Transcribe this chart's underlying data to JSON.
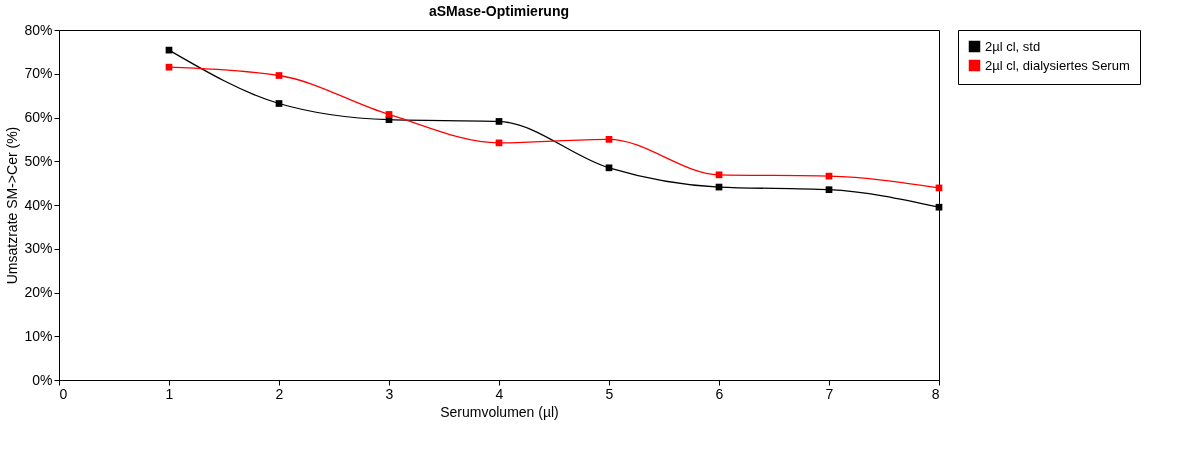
{
  "chart_data": {
    "type": "line",
    "title": "aSMase-Optimierung",
    "xlabel": "Serumvolumen (µl)",
    "ylabel": "Umsatzrate SM->Cer (%)",
    "x": [
      1,
      2,
      3,
      4,
      5,
      6,
      7,
      8
    ],
    "series": [
      {
        "name": "2µl cl, std",
        "color": "#000000",
        "values": [
          75.4,
          63.2,
          59.5,
          59.1,
          48.5,
          44.1,
          43.5,
          39.5
        ]
      },
      {
        "name": "2µl cl, dialysiertes Serum",
        "color": "#ff0000",
        "values": [
          71.5,
          69.6,
          60.7,
          54.2,
          55.0,
          46.9,
          46.6,
          43.9
        ]
      }
    ],
    "xlim": [
      0,
      8
    ],
    "xticks": [
      0,
      1,
      2,
      3,
      4,
      5,
      6,
      7,
      8
    ],
    "ylim": [
      0,
      80
    ],
    "yticks": [
      {
        "value": 0,
        "label": "0%"
      },
      {
        "value": 10,
        "label": "10%"
      },
      {
        "value": 20,
        "label": "20%"
      },
      {
        "value": 30,
        "label": "30%"
      },
      {
        "value": 40,
        "label": "40%"
      },
      {
        "value": 50,
        "label": "50%"
      },
      {
        "value": 60,
        "label": "60%"
      },
      {
        "value": 70,
        "label": "70%"
      },
      {
        "value": 80,
        "label": "80%"
      }
    ],
    "grid": false,
    "legend": "right",
    "marker": "square",
    "line_style": "solid"
  }
}
